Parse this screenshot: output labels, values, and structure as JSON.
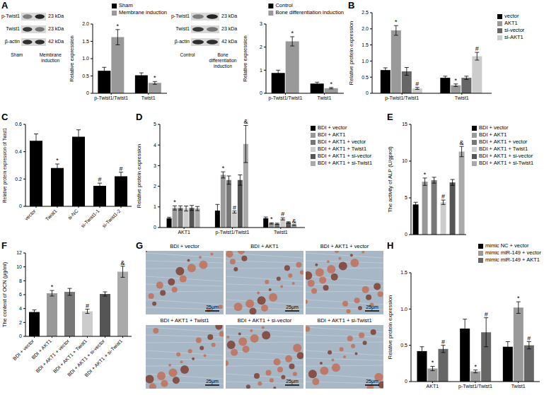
{
  "chart_data": [
    {
      "type": "bar",
      "categories": [
        "p-Twist1/Twist1",
        "Twist1"
      ],
      "y_label": "Relative expression",
      "ylim": [
        0,
        2
      ],
      "yticks": [
        0,
        0.5,
        {
          "value": 1,
          "label": "1.0"
        },
        1.5,
        {
          "value": 2,
          "label": "2.0"
        }
      ],
      "legend": "top",
      "series": [
        {
          "name": "Sham",
          "color": "#000000",
          "values": [
            0.65,
            0.52
          ],
          "errors": [
            0.1,
            0.07
          ],
          "marks": [
            null,
            null
          ]
        },
        {
          "name": "Membrane induction",
          "color": "#999999",
          "values": [
            1.62,
            0.3
          ],
          "errors": [
            0.22,
            0.04
          ],
          "marks": [
            "*",
            "*"
          ]
        }
      ]
    },
    {
      "type": "bar",
      "categories": [
        "p-Twist1/Twist1",
        "Twist1"
      ],
      "y_label": "Relative expression",
      "ylim": [
        0,
        3
      ],
      "yticks": [
        0,
        1,
        2,
        3
      ],
      "legend": "top",
      "series": [
        {
          "name": "Control",
          "color": "#000000",
          "values": [
            0.88,
            0.42
          ],
          "errors": [
            0.12,
            0.06
          ],
          "marks": [
            null,
            null
          ]
        },
        {
          "name": "Bone differentiation induction",
          "color": "#999999",
          "values": [
            2.25,
            0.22
          ],
          "errors": [
            0.2,
            0.03
          ],
          "marks": [
            "*",
            "*"
          ]
        }
      ]
    },
    {
      "type": "bar",
      "panel": "B",
      "categories": [
        "p-Twist1/Twist1",
        "Twist1"
      ],
      "y_label": "Relative protein expression",
      "ylim": [
        0,
        2.5
      ],
      "yticks": [
        0,
        0.5,
        {
          "value": 1,
          "label": "1.0"
        },
        1.5,
        {
          "value": 2,
          "label": "2.0"
        },
        2.5
      ],
      "legend": "right",
      "series": [
        {
          "name": "vector",
          "color": "#000000",
          "values": [
            0.72,
            0.48
          ],
          "errors": [
            0.07,
            0.05
          ],
          "marks": [
            null,
            null
          ]
        },
        {
          "name": "AKT1",
          "color": "#999999",
          "values": [
            1.95,
            0.25
          ],
          "errors": [
            0.15,
            0.04
          ],
          "marks": [
            "*",
            "*"
          ]
        },
        {
          "name": "si-vector",
          "color": "#666666",
          "values": [
            0.68,
            0.48
          ],
          "errors": [
            0.12,
            0.05
          ],
          "marks": [
            null,
            null
          ]
        },
        {
          "name": "si-AKT1",
          "color": "#cccccc",
          "values": [
            0.15,
            1.15
          ],
          "errors": [
            0.03,
            0.12
          ],
          "marks": [
            "#",
            "#"
          ]
        }
      ]
    },
    {
      "type": "bar",
      "panel": "C",
      "categories": [
        "vector",
        "Twist1",
        "si-NC",
        "si-Twist1-1",
        "si-Twist1-2"
      ],
      "y_label": "Relative protein expression of Twist1",
      "ylim": [
        0,
        0.6
      ],
      "yticks": [
        0,
        0.2,
        0.4,
        0.6
      ],
      "color": "#000000",
      "values": [
        0.48,
        0.28,
        0.51,
        0.15,
        0.22
      ],
      "errors": [
        0.05,
        0.03,
        0.05,
        0.02,
        0.03
      ],
      "marks": [
        null,
        "*",
        null,
        "#",
        "#"
      ]
    },
    {
      "type": "bar",
      "panel": "D",
      "categories": [
        "AKT1",
        "p-Twist1/Twist1",
        "Twist1"
      ],
      "y_label": "Relative protein expression",
      "ylim": [
        0,
        5
      ],
      "yticks": [
        0,
        1,
        2,
        3,
        4,
        5
      ],
      "legend": "right",
      "series": [
        {
          "name": "BDI + vector",
          "color": "#000000",
          "values": [
            0.45,
            0.82,
            0.45
          ],
          "errors": [
            0.05,
            0.3,
            0.06
          ],
          "marks": [
            null,
            null,
            null
          ]
        },
        {
          "name": "BDI + AKT1",
          "color": "#999999",
          "values": [
            0.95,
            2.55,
            0.2
          ],
          "errors": [
            0.1,
            0.15,
            0.03
          ],
          "marks": [
            "*",
            "*",
            "*"
          ]
        },
        {
          "name": "BDI + AKT1 + vector",
          "color": "#777777",
          "values": [
            0.95,
            2.3,
            0.18
          ],
          "errors": [
            0.1,
            0.2,
            0.03
          ],
          "marks": [
            null,
            null,
            null
          ]
        },
        {
          "name": "BDI + AKT1 + Twist1",
          "color": "#cccccc",
          "values": [
            0.92,
            0.75,
            0.42
          ],
          "errors": [
            0.12,
            0.05,
            0.05
          ],
          "marks": [
            null,
            "#",
            "#"
          ]
        },
        {
          "name": "BDI + AKT1 + si-vector",
          "color": "#555555",
          "values": [
            0.95,
            2.3,
            0.25
          ],
          "errors": [
            0.12,
            0.25,
            0.03
          ],
          "marks": [
            null,
            null,
            null
          ]
        },
        {
          "name": "BDI + AKT1 + si-Twist1",
          "color": "#aaaaaa",
          "values": [
            0.92,
            4.05,
            0.12
          ],
          "errors": [
            0.1,
            0.9,
            0.02
          ],
          "marks": [
            null,
            "&",
            "&"
          ]
        }
      ]
    },
    {
      "type": "bar",
      "panel": "E",
      "categories": [
        "BDI + vector",
        "BDI + AKT1",
        "BDI + AKT1 + vector",
        "BDI + AKT1 + Twist1",
        "BDI + AKT1 + si-vector",
        "BDI + AKT1 + si-Twist1"
      ],
      "y_label": "The activity of ALP (U/gprot)",
      "ylim": [
        0,
        15
      ],
      "yticks": [
        0,
        5,
        10,
        15
      ],
      "legend": "right",
      "tick_labels": "y",
      "colors": [
        "#000000",
        "#999999",
        "#777777",
        "#cccccc",
        "#555555",
        "#aaaaaa"
      ],
      "values": [
        4.1,
        7.2,
        7.4,
        4.4,
        7.1,
        11.3
      ],
      "errors": [
        0.3,
        0.5,
        0.4,
        0.3,
        0.4,
        0.7
      ],
      "marks": [
        null,
        "*",
        null,
        "#",
        null,
        "&"
      ]
    },
    {
      "type": "bar",
      "panel": "F",
      "categories": [
        "BDI + vector",
        "BDI + AKT1",
        "BDI + AKT1 + vector",
        "BDI + AKT1 + Twist1",
        "BDI + AKT1 + si-vector",
        "BDI + AKT1 + si-Twist1"
      ],
      "y_label": "The content of OCN (μg/ml)",
      "ylim": [
        0,
        12
      ],
      "yticks": [
        0,
        2,
        4,
        6,
        8,
        10,
        12
      ],
      "colors": [
        "#000000",
        "#999999",
        "#777777",
        "#cccccc",
        "#555555",
        "#aaaaaa"
      ],
      "values": [
        3.5,
        6.2,
        6.4,
        3.6,
        6.1,
        9.3
      ],
      "errors": [
        0.3,
        0.4,
        0.5,
        0.3,
        0.3,
        0.8
      ],
      "marks": [
        null,
        "*",
        null,
        "#",
        null,
        "&"
      ]
    },
    {
      "type": "bar",
      "panel": "H",
      "categories": [
        "AKT1",
        "p-Twist1/Twist1",
        "Twist1"
      ],
      "y_label": "Relative protein expression",
      "ylim": [
        0,
        1.5
      ],
      "yticks": [
        0,
        0.5,
        {
          "value": 1,
          "label": "1.0"
        },
        1.5
      ],
      "legend": "top",
      "series": [
        {
          "name": "mimic NC + vector",
          "color": "#000000",
          "values": [
            0.42,
            0.73,
            0.48
          ],
          "errors": [
            0.06,
            0.13,
            0.07
          ],
          "marks": [
            null,
            null,
            null
          ]
        },
        {
          "name": "mimic miR-149 + vector",
          "color": "#999999",
          "values": [
            0.18,
            0.14,
            1.02
          ],
          "errors": [
            0.03,
            0.02,
            0.08
          ],
          "marks": [
            "*",
            "*",
            "*"
          ]
        },
        {
          "name": "mimic miR-149 + AKT1",
          "color": "#666666",
          "values": [
            0.45,
            0.68,
            0.5
          ],
          "errors": [
            0.05,
            0.2,
            0.05
          ],
          "marks": [
            "#",
            "#",
            "#"
          ]
        }
      ]
    }
  ],
  "blots": [
    {
      "panel": "A",
      "lanes": [
        "Sham",
        "Membrane induction"
      ],
      "rows": [
        {
          "label": "p-Twist1",
          "mw": "23 kDa"
        },
        {
          "label": "Twist1",
          "mw": "23 kDa"
        },
        {
          "label": "β-actin",
          "mw": "42 kDa"
        }
      ]
    },
    {
      "lanes": [
        "Control",
        "Bone differentiation induction"
      ],
      "rows": [
        {
          "label": "p-Twist1",
          "mw": "23 kDa"
        },
        {
          "label": "Twist1",
          "mw": "23 kDa"
        },
        {
          "label": "β-actin",
          "mw": "42 kDa"
        }
      ]
    }
  ],
  "micrographs": {
    "panel": "G",
    "images": [
      {
        "title": "BDI + vector",
        "scale_bar": "25μm"
      },
      {
        "title": "BDI + AKT1",
        "scale_bar": "25μm"
      },
      {
        "title": "BDI + AKT1 + vector",
        "scale_bar": "25μm"
      },
      {
        "title": "BDI + AKT1 + Twist1",
        "scale_bar": "25μm"
      },
      {
        "title": "BDI + AKT1 + si-vector",
        "scale_bar": "25μm"
      },
      {
        "title": "BDI + AKT1 + si-Twist1",
        "scale_bar": "25μm"
      }
    ]
  }
}
